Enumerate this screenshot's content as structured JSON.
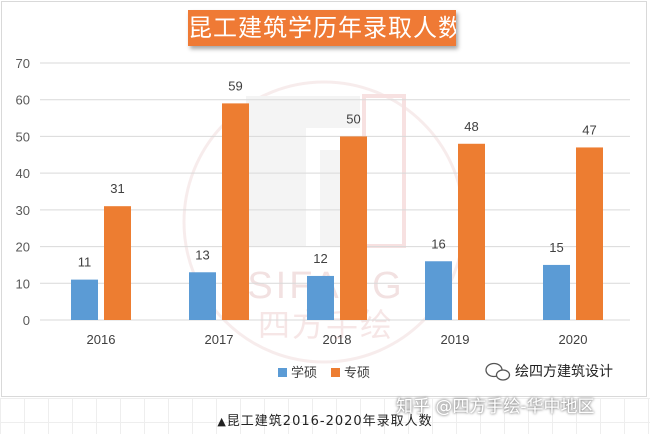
{
  "chart_data": {
    "type": "bar",
    "title": "昆工建筑学历年录取人数",
    "categories": [
      "2016",
      "2017",
      "2018",
      "2019",
      "2020"
    ],
    "series": [
      {
        "name": "学硕",
        "values": [
          11,
          13,
          12,
          16,
          15
        ],
        "color": "#5b9bd5"
      },
      {
        "name": "专硕",
        "values": [
          31,
          59,
          50,
          48,
          47
        ],
        "color": "#ed7d31"
      }
    ],
    "ylim": [
      0,
      70
    ],
    "yticks": [
      0,
      10,
      20,
      30,
      40,
      50,
      60,
      70
    ],
    "grid": true,
    "legend": "bottom-center",
    "show_data_labels": true
  },
  "watermark": {
    "brand_text": "SIFANG",
    "brand_cn": "四方手绘",
    "wechat_name": "绘四方建筑设计",
    "zhihu": "知乎 @四方手绘-华中地区"
  },
  "caption": {
    "marker": "▲",
    "text": "昆工建筑2016-2020年录取人数"
  },
  "colors": {
    "title_bg": "#ef7a35",
    "grid": "#d9d9d9",
    "axis_text": "#595959",
    "watermark": "#e8b7b7"
  }
}
